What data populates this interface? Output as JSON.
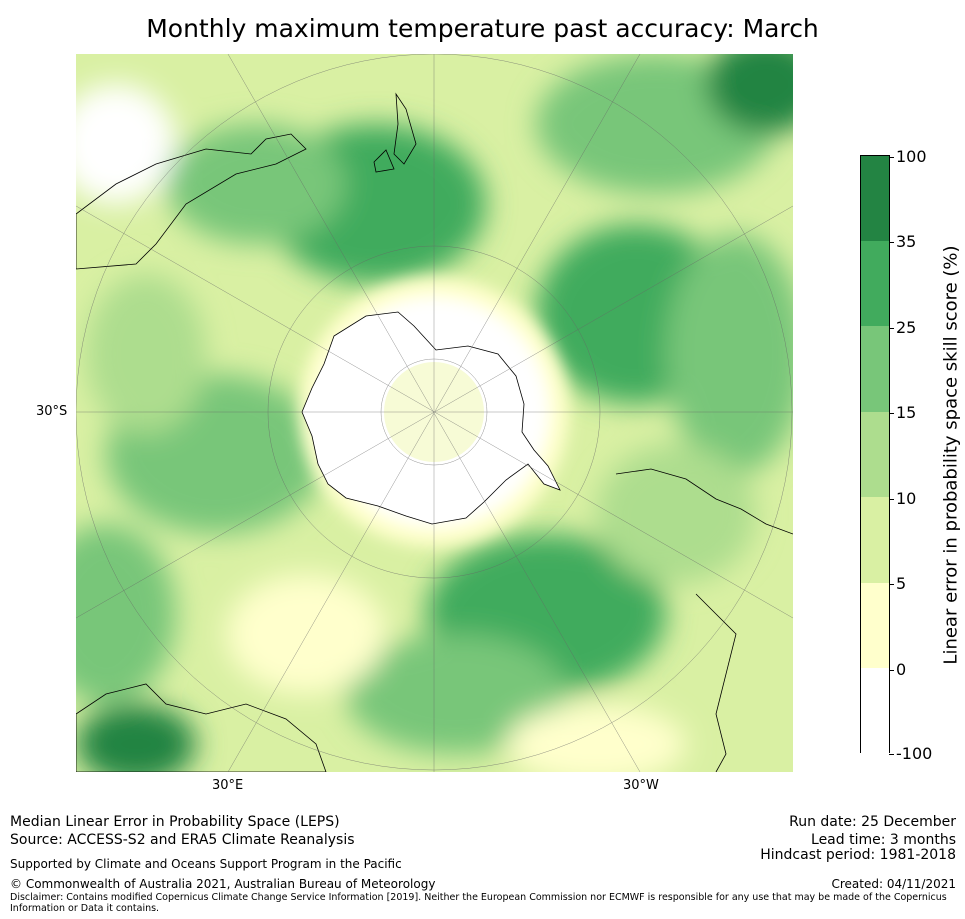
{
  "title": "Monthly maximum temperature past accuracy: March",
  "map": {
    "projection": "south polar stereographic",
    "labels": {
      "lat_left": "30°S",
      "lon_left": "30°E",
      "lon_right": "30°W"
    }
  },
  "colorbar": {
    "title": "Linear error in probability space skill score (%)",
    "ticks": [
      "100",
      "35",
      "25",
      "15",
      "10",
      "5",
      "0",
      "-100"
    ],
    "colors": [
      "#ffffff",
      "#ffffcc",
      "#d9f0a3",
      "#addd8e",
      "#78c679",
      "#41ab5d",
      "#238443"
    ]
  },
  "footer": {
    "line1": "Median Linear Error in Probability Space (LEPS)",
    "line2": "Source: ACCESS-S2 and ERA5 Climate Reanalysis",
    "support": "Supported by Climate and Oceans Support Program in the Pacific",
    "copyright": "© Commonwealth of Australia 2021, Australian Bureau of Meteorology",
    "disclaimer": "Disclaimer: Contains modified Copernicus Climate Change Service Information [2019]. Neither the European Commission nor ECMWF is responsible for any use that may be made of the Copernicus Information or Data it contains.",
    "run_date": "Run date: 25 December",
    "lead_time": "Lead time: 3 months",
    "hindcast": "Hindcast period: 1981-2018",
    "created": "Created: 04/11/2021"
  }
}
